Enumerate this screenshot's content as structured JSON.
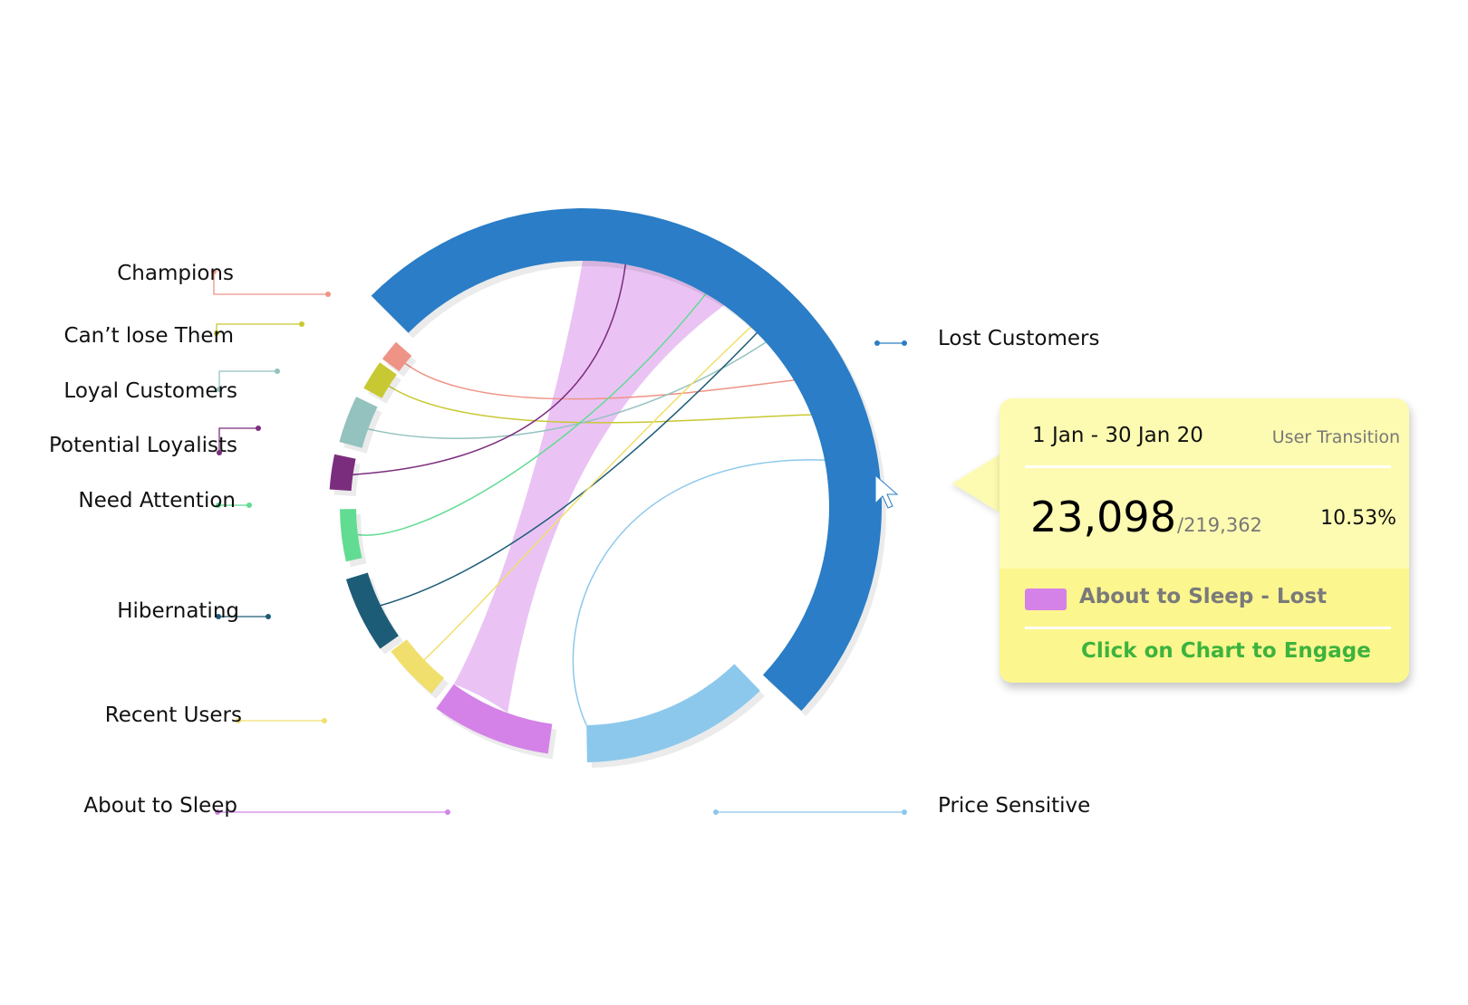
{
  "chart_data": {
    "type": "chord",
    "title": "",
    "segments": [
      {
        "name": "Champions",
        "color": "#ef9386"
      },
      {
        "name": "Can’t lose Them",
        "color": "#c8c832"
      },
      {
        "name": "Loyal Customers",
        "color": "#93c2bf"
      },
      {
        "name": "Potential Loyalists",
        "color": "#7b2d7d"
      },
      {
        "name": "Need Attention",
        "color": "#62db93"
      },
      {
        "name": "Hibernating",
        "color": "#1d5c77"
      },
      {
        "name": "Recent Users",
        "color": "#f1df6d"
      },
      {
        "name": "About to Sleep",
        "color": "#d482e8"
      },
      {
        "name": "Price Sensitive",
        "color": "#8cc8ec"
      },
      {
        "name": "Lost Customers",
        "color": "#2a7dc6"
      }
    ],
    "flows": [
      {
        "source": "About to Sleep",
        "target": "Lost Customers",
        "value": 23098,
        "highlighted": true
      },
      {
        "source": "Champions",
        "target": "Lost Customers"
      },
      {
        "source": "Can’t lose Them",
        "target": "Lost Customers"
      },
      {
        "source": "Loyal Customers",
        "target": "Lost Customers"
      },
      {
        "source": "Potential Loyalists",
        "target": "Lost Customers"
      },
      {
        "source": "Need Attention",
        "target": "Lost Customers"
      },
      {
        "source": "Hibernating",
        "target": "Lost Customers"
      },
      {
        "source": "Recent Users",
        "target": "Lost Customers"
      },
      {
        "source": "Price Sensitive",
        "target": "Lost Customers"
      }
    ],
    "total": 219362
  },
  "tooltip": {
    "date_range": "1 Jan - 30 Jan 20",
    "kind": "User Transition",
    "value": "23,098",
    "total": "/219,362",
    "percent": "10.53%",
    "pair_label": "About to Sleep -  Lost",
    "pair_color": "#d482e8",
    "cta": "Click on Chart to Engage"
  },
  "cursor_icon": "pointer-arrow-icon"
}
